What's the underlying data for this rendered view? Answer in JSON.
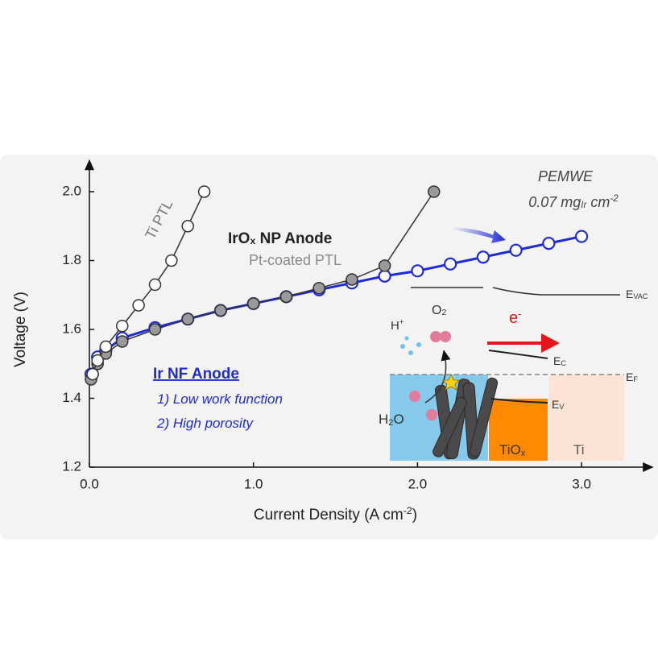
{
  "chart_data": {
    "type": "line",
    "xlabel": {
      "segments": [
        {
          "t": "Current Density (A cm"
        },
        {
          "t": "-2",
          "s": "sup"
        },
        {
          "t": ")"
        }
      ]
    },
    "ylabel": "Voltage (V)",
    "xlim": [
      0,
      3.41
    ],
    "ylim": [
      1.2,
      2.08
    ],
    "xticks": [
      {
        "value": 0,
        "label": "0.0"
      },
      {
        "value": 1,
        "label": "1.0"
      },
      {
        "value": 2,
        "label": "2.0"
      },
      {
        "value": 3,
        "label": "3.0"
      }
    ],
    "yticks": [
      1.2,
      1.4,
      1.6,
      1.8,
      {
        "value": 2,
        "label": "2.0"
      }
    ],
    "series": [
      {
        "color": "#1f2bd6",
        "x": [
          0.01,
          0.05,
          0.1,
          0.2,
          0.4,
          0.6,
          0.8,
          1.0,
          1.2,
          1.4,
          1.6,
          1.8,
          2.0,
          2.2,
          2.4,
          2.6,
          2.8,
          3.0
        ],
        "values": [
          1.47,
          1.52,
          1.54,
          1.575,
          1.605,
          1.63,
          1.655,
          1.675,
          1.695,
          1.715,
          1.735,
          1.755,
          1.77,
          1.79,
          1.81,
          1.83,
          1.85,
          1.87
        ]
      },
      {
        "color": "#9a9a9a",
        "x": [
          0.01,
          0.02,
          0.05,
          0.1,
          0.2,
          0.4,
          0.6,
          0.8,
          1.0,
          1.2,
          1.4,
          1.6,
          1.8,
          2.1
        ],
        "values": [
          1.455,
          1.47,
          1.5,
          1.53,
          1.565,
          1.6,
          1.63,
          1.655,
          1.675,
          1.695,
          1.72,
          1.745,
          1.785,
          2.0
        ]
      },
      {
        "color": "#ffffff",
        "x": [
          0.02,
          0.05,
          0.1,
          0.2,
          0.3,
          0.4,
          0.5,
          0.6,
          0.7
        ],
        "values": [
          1.47,
          1.51,
          1.55,
          1.61,
          1.67,
          1.73,
          1.8,
          1.9,
          2.0
        ]
      }
    ],
    "annotations": [
      {
        "segments": [
          {
            "t": "Ti PTL"
          }
        ]
      },
      {
        "segments": [
          {
            "t": "IrO"
          },
          {
            "t": "x",
            "s": "sub"
          },
          {
            "t": " NP Anode"
          }
        ]
      },
      {
        "segments": [
          {
            "t": "Pt-coated PTL"
          }
        ]
      },
      {
        "segments": [
          {
            "t": "PEMWE"
          }
        ]
      },
      {
        "segments": [
          {
            "t": "0.07 mg"
          },
          {
            "t": "Ir",
            "s": "sub"
          },
          {
            "t": " cm"
          },
          {
            "t": "-2",
            "s": "sup"
          }
        ]
      },
      {
        "segments": [
          {
            "t": "Ir NF Anode"
          }
        ]
      },
      {
        "segments": [
          {
            "t": "1) Low work function"
          }
        ]
      },
      {
        "segments": [
          {
            "t": "2) High porosity"
          }
        ]
      },
      {
        "segments": [
          {
            "t": "H"
          },
          {
            "t": "+",
            "s": "sup"
          }
        ]
      },
      {
        "segments": [
          {
            "t": "O"
          },
          {
            "t": "2",
            "s": "sub"
          }
        ]
      },
      {
        "segments": [
          {
            "t": "e"
          },
          {
            "t": "-",
            "s": "sup"
          }
        ]
      },
      {
        "segments": [
          {
            "t": "E"
          },
          {
            "t": "VAC",
            "s": "sub"
          }
        ]
      },
      {
        "segments": [
          {
            "t": "E"
          },
          {
            "t": "C",
            "s": "sub"
          }
        ]
      },
      {
        "segments": [
          {
            "t": "E"
          },
          {
            "t": "F",
            "s": "sub"
          }
        ]
      },
      {
        "segments": [
          {
            "t": "E"
          },
          {
            "t": "V",
            "s": "sub"
          }
        ]
      },
      {
        "segments": [
          {
            "t": "H"
          },
          {
            "t": "2",
            "s": "sub"
          },
          {
            "t": "O"
          }
        ]
      },
      {
        "segments": [
          {
            "t": "TiO"
          },
          {
            "t": "x",
            "s": "sub"
          }
        ]
      },
      {
        "segments": [
          {
            "t": "Ti"
          }
        ]
      }
    ]
  }
}
